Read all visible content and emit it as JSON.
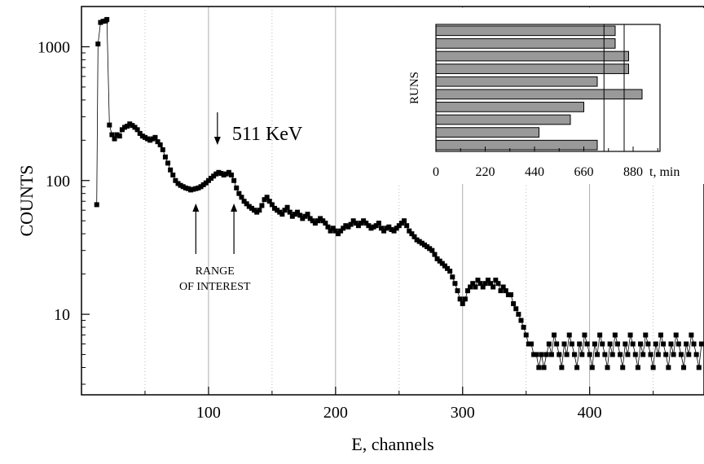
{
  "chart_data": [
    {
      "type": "scatter",
      "xlabel": "E, channels",
      "ylabel": "COUNTS",
      "xlim": [
        0,
        490
      ],
      "ylim": [
        2.5,
        2000
      ],
      "y_scale": "log",
      "x_ticks": [
        100,
        200,
        300,
        400
      ],
      "x_ticklabels": [
        "100",
        "200",
        "300",
        "400"
      ],
      "y_ticks": [
        10,
        100,
        1000
      ],
      "y_ticklabels": [
        "10",
        "100",
        "1000"
      ],
      "grid": "vertical dotted lines every 50 channels",
      "annotations": [
        {
          "text": "511 KeV",
          "x": 107,
          "y": 210,
          "arrow": "down"
        },
        {
          "text_line1": "RANGE",
          "text_line2": "OF INTEREST",
          "arrows_up_at": [
            90,
            120
          ]
        }
      ],
      "series": [
        {
          "points": [
            [
              12,
              66
            ],
            [
              13,
              1050
            ],
            [
              15,
              1520
            ],
            [
              17,
              1550
            ],
            [
              19,
              1560
            ],
            [
              20,
              1600
            ],
            [
              22,
              260
            ],
            [
              24,
              220
            ],
            [
              26,
              205
            ],
            [
              28,
              220
            ],
            [
              30,
              215
            ],
            [
              32,
              240
            ],
            [
              34,
              250
            ],
            [
              36,
              255
            ],
            [
              38,
              265
            ],
            [
              40,
              258
            ],
            [
              42,
              250
            ],
            [
              44,
              240
            ],
            [
              46,
              225
            ],
            [
              48,
              215
            ],
            [
              50,
              210
            ],
            [
              52,
              205
            ],
            [
              54,
              200
            ],
            [
              56,
              205
            ],
            [
              58,
              210
            ],
            [
              60,
              195
            ],
            [
              62,
              185
            ],
            [
              64,
              170
            ],
            [
              66,
              150
            ],
            [
              68,
              135
            ],
            [
              70,
              120
            ],
            [
              72,
              110
            ],
            [
              74,
              100
            ],
            [
              76,
              95
            ],
            [
              78,
              92
            ],
            [
              80,
              90
            ],
            [
              82,
              88
            ],
            [
              84,
              87
            ],
            [
              86,
              85
            ],
            [
              88,
              86
            ],
            [
              90,
              87
            ],
            [
              92,
              88
            ],
            [
              94,
              90
            ],
            [
              96,
              93
            ],
            [
              98,
              96
            ],
            [
              100,
              100
            ],
            [
              102,
              104
            ],
            [
              104,
              108
            ],
            [
              106,
              112
            ],
            [
              108,
              115
            ],
            [
              110,
              113
            ],
            [
              112,
              110
            ],
            [
              114,
              112
            ],
            [
              116,
              115
            ],
            [
              118,
              110
            ],
            [
              120,
              100
            ],
            [
              122,
              88
            ],
            [
              124,
              80
            ],
            [
              126,
              75
            ],
            [
              128,
              70
            ],
            [
              130,
              67
            ],
            [
              132,
              64
            ],
            [
              134,
              62
            ],
            [
              136,
              60
            ],
            [
              138,
              58
            ],
            [
              140,
              60
            ],
            [
              142,
              65
            ],
            [
              144,
              72
            ],
            [
              146,
              75
            ],
            [
              148,
              70
            ],
            [
              150,
              66
            ],
            [
              152,
              62
            ],
            [
              154,
              60
            ],
            [
              156,
              58
            ],
            [
              158,
              56
            ],
            [
              160,
              60
            ],
            [
              162,
              63
            ],
            [
              164,
              58
            ],
            [
              166,
              54
            ],
            [
              168,
              56
            ],
            [
              170,
              58
            ],
            [
              172,
              55
            ],
            [
              174,
              52
            ],
            [
              176,
              54
            ],
            [
              178,
              56
            ],
            [
              180,
              52
            ],
            [
              182,
              50
            ],
            [
              184,
              48
            ],
            [
              186,
              50
            ],
            [
              188,
              52
            ],
            [
              190,
              50
            ],
            [
              192,
              48
            ],
            [
              194,
              45
            ],
            [
              196,
              42
            ],
            [
              198,
              44
            ],
            [
              200,
              42
            ],
            [
              202,
              40
            ],
            [
              204,
              42
            ],
            [
              206,
              44
            ],
            [
              208,
              46
            ],
            [
              210,
              45
            ],
            [
              212,
              47
            ],
            [
              214,
              50
            ],
            [
              216,
              48
            ],
            [
              218,
              46
            ],
            [
              220,
              48
            ],
            [
              222,
              50
            ],
            [
              224,
              48
            ],
            [
              226,
              46
            ],
            [
              228,
              44
            ],
            [
              230,
              45
            ],
            [
              232,
              46
            ],
            [
              234,
              48
            ],
            [
              236,
              44
            ],
            [
              238,
              42
            ],
            [
              240,
              44
            ],
            [
              242,
              45
            ],
            [
              244,
              43
            ],
            [
              246,
              42
            ],
            [
              248,
              44
            ],
            [
              250,
              46
            ],
            [
              252,
              48
            ],
            [
              254,
              50
            ],
            [
              256,
              46
            ],
            [
              258,
              42
            ],
            [
              260,
              40
            ],
            [
              262,
              38
            ],
            [
              264,
              36
            ],
            [
              266,
              35
            ],
            [
              268,
              34
            ],
            [
              270,
              33
            ],
            [
              272,
              32
            ],
            [
              274,
              31
            ],
            [
              276,
              30
            ],
            [
              278,
              28
            ],
            [
              280,
              26
            ],
            [
              282,
              25
            ],
            [
              284,
              24
            ],
            [
              286,
              23
            ],
            [
              288,
              22
            ],
            [
              290,
              21
            ],
            [
              292,
              19
            ],
            [
              294,
              17
            ],
            [
              296,
              15
            ],
            [
              298,
              13
            ],
            [
              300,
              12
            ],
            [
              302,
              13
            ],
            [
              304,
              15
            ],
            [
              306,
              16
            ],
            [
              308,
              17
            ],
            [
              310,
              16
            ],
            [
              312,
              18
            ],
            [
              314,
              17
            ],
            [
              316,
              16
            ],
            [
              318,
              17
            ],
            [
              320,
              18
            ],
            [
              322,
              17
            ],
            [
              324,
              16
            ],
            [
              326,
              18
            ],
            [
              328,
              17
            ],
            [
              330,
              15
            ],
            [
              332,
              16
            ],
            [
              334,
              15
            ],
            [
              336,
              14
            ],
            [
              338,
              14
            ],
            [
              340,
              12
            ],
            [
              342,
              11
            ],
            [
              344,
              10
            ],
            [
              346,
              9
            ],
            [
              348,
              8
            ],
            [
              350,
              7
            ],
            [
              352,
              6
            ],
            [
              354,
              6
            ],
            [
              356,
              5
            ],
            [
              358,
              5
            ],
            [
              360,
              4
            ],
            [
              362,
              5
            ],
            [
              364,
              4
            ],
            [
              366,
              5
            ],
            [
              368,
              6
            ],
            [
              370,
              5
            ],
            [
              372,
              7
            ],
            [
              374,
              6
            ],
            [
              376,
              5
            ],
            [
              378,
              4
            ],
            [
              380,
              6
            ],
            [
              382,
              5
            ],
            [
              384,
              7
            ],
            [
              386,
              6
            ],
            [
              388,
              5
            ],
            [
              390,
              4
            ],
            [
              392,
              6
            ],
            [
              394,
              5
            ],
            [
              396,
              7
            ],
            [
              398,
              6
            ],
            [
              400,
              5
            ],
            [
              402,
              4
            ],
            [
              404,
              6
            ],
            [
              406,
              5
            ],
            [
              408,
              7
            ],
            [
              410,
              6
            ],
            [
              412,
              5
            ],
            [
              414,
              4
            ],
            [
              416,
              6
            ],
            [
              418,
              5
            ],
            [
              420,
              7
            ],
            [
              422,
              6
            ],
            [
              424,
              5
            ],
            [
              426,
              4
            ],
            [
              428,
              6
            ],
            [
              430,
              5
            ],
            [
              432,
              7
            ],
            [
              434,
              6
            ],
            [
              436,
              5
            ],
            [
              438,
              4
            ],
            [
              440,
              6
            ],
            [
              442,
              5
            ],
            [
              444,
              7
            ],
            [
              446,
              6
            ],
            [
              448,
              5
            ],
            [
              450,
              4
            ],
            [
              452,
              6
            ],
            [
              454,
              5
            ],
            [
              456,
              7
            ],
            [
              458,
              6
            ],
            [
              460,
              5
            ],
            [
              462,
              4
            ],
            [
              464,
              6
            ],
            [
              466,
              5
            ],
            [
              468,
              7
            ],
            [
              470,
              6
            ],
            [
              472,
              5
            ],
            [
              474,
              4
            ],
            [
              476,
              6
            ],
            [
              478,
              5
            ],
            [
              480,
              7
            ],
            [
              482,
              6
            ],
            [
              484,
              5
            ],
            [
              486,
              4
            ],
            [
              488,
              6
            ]
          ]
        }
      ]
    },
    {
      "type": "bar",
      "orientation": "horizontal",
      "inset": true,
      "ylabel": "RUNS",
      "xlabel": "t, min",
      "xlim": [
        0,
        1000
      ],
      "x_ticks": [
        0,
        220,
        440,
        660,
        880
      ],
      "x_ticklabels": [
        "0",
        "220",
        "440",
        "660",
        "880"
      ],
      "values": [
        800,
        800,
        860,
        860,
        720,
        920,
        660,
        600,
        460,
        720
      ],
      "reference_lines": [
        750,
        840
      ]
    }
  ]
}
